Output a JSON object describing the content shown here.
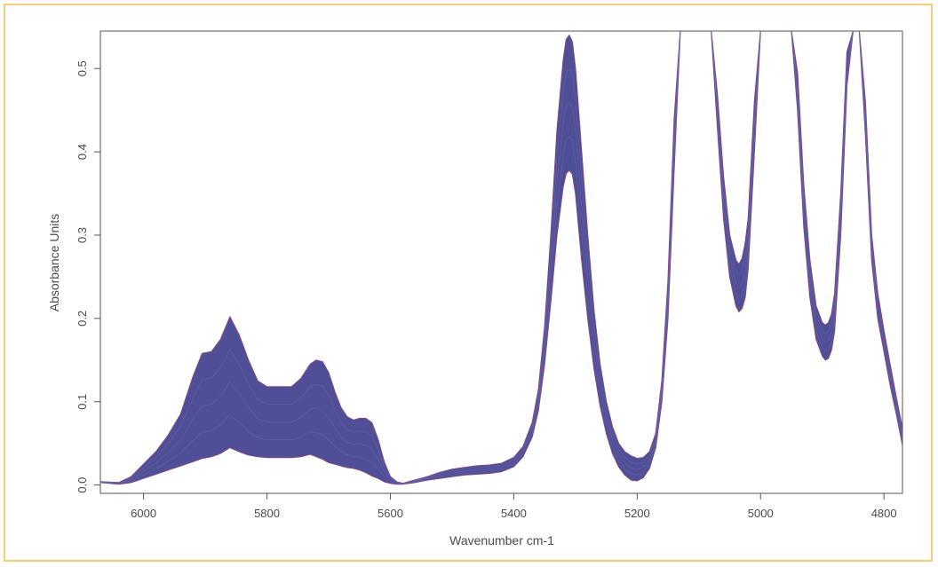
{
  "chart_data": {
    "type": "line",
    "title": "",
    "xlabel": "Wavenumber cm-1",
    "ylabel": "Absorbance Units",
    "xlim": [
      6070,
      4770
    ],
    "ylim": [
      -0.01,
      0.545
    ],
    "x_reversed": true,
    "x_ticks": [
      6000,
      5800,
      5600,
      5400,
      5200,
      5000,
      4800
    ],
    "x_tick_labels": [
      "6000",
      "5800",
      "5600",
      "5400",
      "5200",
      "5000",
      "4800"
    ],
    "y_ticks": [
      0.0,
      0.1,
      0.2,
      0.3,
      0.4,
      0.5
    ],
    "y_tick_labels": [
      "0.0",
      "0.1",
      "0.2",
      "0.3",
      "0.4",
      "0.5"
    ],
    "grid": false,
    "legend": "none",
    "colors": {
      "band": "#4f4f97",
      "edge": "#7a4a86",
      "frame": "#f2cf7a",
      "axis": "#555555"
    },
    "series": [
      {
        "x": [
          6070,
          6040,
          6020,
          6000,
          5980,
          5960,
          5940,
          5920,
          5905,
          5890,
          5875,
          5860,
          5845,
          5830,
          5815,
          5800,
          5780,
          5760,
          5745,
          5730,
          5720,
          5710,
          5700,
          5690,
          5680,
          5670,
          5660,
          5650,
          5640,
          5630,
          5620,
          5610,
          5600,
          5590,
          5580,
          5560,
          5540,
          5520,
          5500,
          5480,
          5460,
          5440,
          5420,
          5400,
          5385,
          5370,
          5360,
          5350,
          5340,
          5330,
          5320,
          5315,
          5310,
          5305,
          5300,
          5290,
          5280,
          5270,
          5260,
          5250,
          5240,
          5230,
          5220,
          5210,
          5200,
          5190,
          5180,
          5170,
          5160,
          5150,
          5140,
          5130,
          5120,
          5110,
          5100,
          5090,
          5080,
          5070,
          5060,
          5050,
          5040,
          5035,
          5030,
          5025,
          5020,
          5010,
          5000,
          4990,
          4980,
          4970,
          4960,
          4950,
          4940,
          4930,
          4920,
          4910,
          4900,
          4895,
          4890,
          4885,
          4880,
          4870,
          4860,
          4850,
          4840,
          4830,
          4820,
          4810,
          4800,
          4790,
          4780,
          4770
        ],
        "y_low": [
          0.003,
          0.001,
          0.003,
          0.008,
          0.013,
          0.018,
          0.023,
          0.028,
          0.032,
          0.034,
          0.038,
          0.045,
          0.04,
          0.036,
          0.034,
          0.033,
          0.033,
          0.033,
          0.034,
          0.037,
          0.034,
          0.031,
          0.027,
          0.025,
          0.023,
          0.021,
          0.02,
          0.018,
          0.015,
          0.011,
          0.008,
          0.004,
          0.002,
          0.001,
          0.001,
          0.003,
          0.006,
          0.008,
          0.01,
          0.012,
          0.013,
          0.014,
          0.016,
          0.022,
          0.034,
          0.058,
          0.09,
          0.145,
          0.22,
          0.3,
          0.358,
          0.374,
          0.378,
          0.373,
          0.35,
          0.27,
          0.2,
          0.14,
          0.095,
          0.062,
          0.038,
          0.022,
          0.012,
          0.006,
          0.005,
          0.009,
          0.02,
          0.045,
          0.1,
          0.2,
          0.38,
          0.545,
          0.545,
          0.545,
          0.545,
          0.545,
          0.545,
          0.43,
          0.32,
          0.25,
          0.215,
          0.208,
          0.212,
          0.225,
          0.26,
          0.4,
          0.545,
          0.545,
          0.545,
          0.545,
          0.545,
          0.545,
          0.45,
          0.31,
          0.225,
          0.175,
          0.155,
          0.15,
          0.152,
          0.162,
          0.185,
          0.3,
          0.48,
          0.545,
          0.545,
          0.42,
          0.27,
          0.2,
          0.16,
          0.12,
          0.085,
          0.048
        ],
        "y_high": [
          0.004,
          0.003,
          0.01,
          0.025,
          0.04,
          0.06,
          0.085,
          0.13,
          0.158,
          0.16,
          0.175,
          0.202,
          0.18,
          0.15,
          0.125,
          0.118,
          0.118,
          0.118,
          0.128,
          0.145,
          0.15,
          0.148,
          0.135,
          0.112,
          0.093,
          0.082,
          0.078,
          0.08,
          0.08,
          0.075,
          0.055,
          0.028,
          0.01,
          0.004,
          0.002,
          0.006,
          0.01,
          0.015,
          0.019,
          0.021,
          0.023,
          0.024,
          0.026,
          0.033,
          0.046,
          0.075,
          0.115,
          0.19,
          0.3,
          0.425,
          0.51,
          0.535,
          0.54,
          0.532,
          0.5,
          0.4,
          0.3,
          0.21,
          0.145,
          0.1,
          0.07,
          0.05,
          0.04,
          0.035,
          0.032,
          0.033,
          0.04,
          0.062,
          0.125,
          0.245,
          0.44,
          0.545,
          0.545,
          0.545,
          0.545,
          0.545,
          0.545,
          0.47,
          0.37,
          0.3,
          0.27,
          0.265,
          0.272,
          0.29,
          0.32,
          0.46,
          0.545,
          0.545,
          0.545,
          0.545,
          0.545,
          0.545,
          0.495,
          0.36,
          0.27,
          0.215,
          0.195,
          0.192,
          0.195,
          0.205,
          0.23,
          0.35,
          0.52,
          0.545,
          0.545,
          0.46,
          0.3,
          0.23,
          0.185,
          0.145,
          0.105,
          0.068
        ]
      }
    ]
  }
}
